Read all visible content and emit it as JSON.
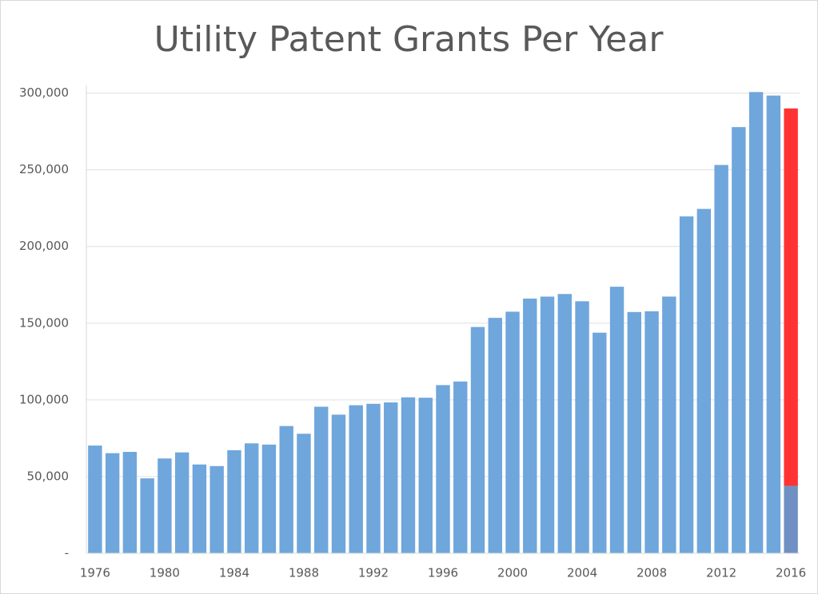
{
  "chart_data": {
    "type": "bar",
    "title": "Utility Patent Grants Per Year",
    "x": [
      1976,
      1977,
      1978,
      1979,
      1980,
      1981,
      1982,
      1983,
      1984,
      1985,
      1986,
      1987,
      1988,
      1989,
      1990,
      1991,
      1992,
      1993,
      1994,
      1995,
      1996,
      1997,
      1998,
      1999,
      2000,
      2001,
      2002,
      2003,
      2004,
      2005,
      2006,
      2007,
      2008,
      2009,
      2010,
      2011,
      2012,
      2013,
      2014,
      2015,
      2016
    ],
    "xlim": [
      1975.5,
      2016.5
    ],
    "xticks": [
      1976,
      1980,
      1984,
      1988,
      1992,
      1996,
      2000,
      2004,
      2008,
      2012,
      2016
    ],
    "series": [
      {
        "color": "#6fa6dc",
        "values": [
          70226,
          65269,
          66102,
          48854,
          61819,
          65771,
          57888,
          56860,
          67200,
          71661,
          70860,
          82952,
          77924,
          95537,
          90365,
          96511,
          97444,
          98342,
          101676,
          101419,
          109645,
          111984,
          147517,
          153485,
          157494,
          166035,
          167331,
          169023,
          164290,
          143806,
          173772,
          157282,
          157772,
          167349,
          219614,
          224505,
          253155,
          277835,
          300678,
          298407,
          null
        ]
      },
      {
        "color": "#7090c4",
        "values": [
          null,
          null,
          null,
          null,
          null,
          null,
          null,
          null,
          null,
          null,
          null,
          null,
          null,
          null,
          null,
          null,
          null,
          null,
          null,
          null,
          null,
          null,
          null,
          null,
          null,
          null,
          null,
          null,
          null,
          null,
          null,
          null,
          null,
          null,
          null,
          null,
          null,
          null,
          null,
          null,
          44000
        ]
      },
      {
        "color": "#ff3333",
        "values": [
          null,
          null,
          null,
          null,
          null,
          null,
          null,
          null,
          null,
          null,
          null,
          null,
          null,
          null,
          null,
          null,
          null,
          null,
          null,
          null,
          null,
          null,
          null,
          null,
          null,
          null,
          null,
          null,
          null,
          null,
          null,
          null,
          null,
          null,
          null,
          null,
          null,
          null,
          null,
          null,
          246000
        ]
      }
    ],
    "ylim": [
      0,
      305000
    ],
    "yticks": [
      {
        "value": 0,
        "label": "-"
      },
      {
        "value": 50000,
        "label": "50,000"
      },
      {
        "value": 100000,
        "label": "100,000"
      },
      {
        "value": 150000,
        "label": "150,000"
      },
      {
        "value": 200000,
        "label": "200,000"
      },
      {
        "value": 250000,
        "label": "250,000"
      },
      {
        "value": 300000,
        "label": "300,000"
      }
    ],
    "grid": true
  }
}
